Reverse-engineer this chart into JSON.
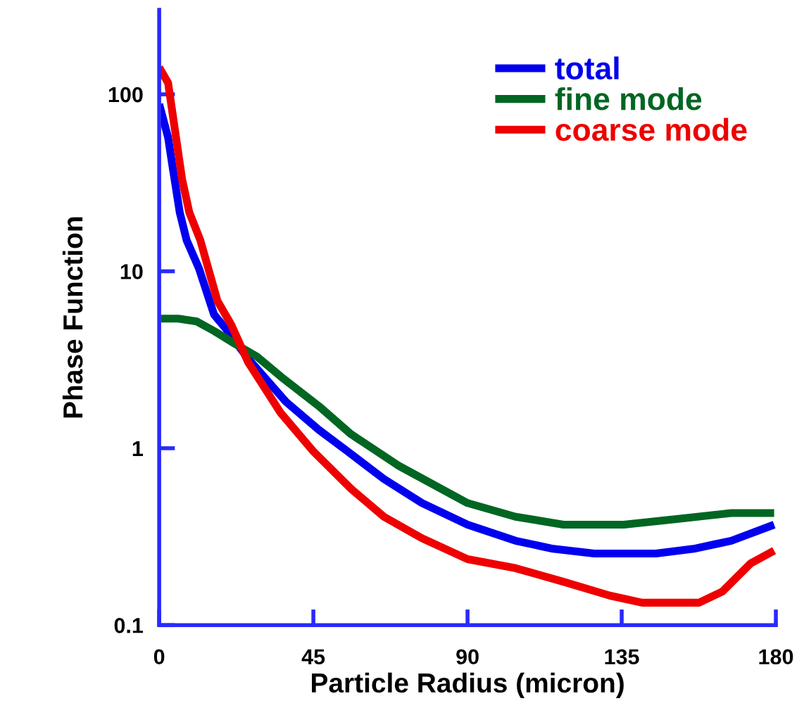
{
  "chart_data": {
    "type": "line",
    "xlabel": "Particle Radius (micron)",
    "ylabel": "Phase Function",
    "xlim": [
      0,
      180
    ],
    "xticks": [
      0,
      45,
      90,
      135,
      180
    ],
    "ylim": [
      0.1,
      300
    ],
    "yticks": [
      0.1,
      1,
      10,
      100
    ],
    "log": "y",
    "grid": false,
    "legend": "top right",
    "line_style": "solid",
    "series": [
      {
        "name": "total",
        "color": "#0000ee",
        "x": [
          0,
          2.6,
          3.9,
          6,
          8,
          11.6,
          16,
          20,
          24,
          26,
          37,
          46.6,
          55,
          65.6,
          76.7,
          90,
          104,
          115,
          127,
          145,
          156,
          167,
          179.5
        ],
        "values": [
          88,
          57,
          39,
          21.5,
          15,
          10.4,
          5.7,
          4.6,
          3.6,
          3.2,
          1.83,
          1.27,
          0.96,
          0.67,
          0.49,
          0.37,
          0.3,
          0.27,
          0.254,
          0.254,
          0.27,
          0.3,
          0.37
        ]
      },
      {
        "name": "fine mode",
        "color": "#006622",
        "x": [
          0.5,
          5.5,
          11,
          16,
          22,
          28.5,
          35.5,
          46.6,
          56,
          69.7,
          90,
          104,
          118,
          135.6,
          152,
          167,
          179.5
        ],
        "values": [
          5.4,
          5.4,
          5.2,
          4.6,
          3.9,
          3.3,
          2.54,
          1.73,
          1.2,
          0.8,
          0.49,
          0.41,
          0.37,
          0.37,
          0.4,
          0.43,
          0.43
        ]
      },
      {
        "name": "coarse mode",
        "color": "#ee0000",
        "x": [
          0,
          2.6,
          4.7,
          6.7,
          8.8,
          12,
          17,
          21,
          26,
          35.5,
          45,
          56,
          65.6,
          76.7,
          90,
          104,
          118,
          131.5,
          141,
          157.6,
          164.4,
          172.6,
          179.5
        ],
        "values": [
          142,
          116,
          61,
          33,
          21.5,
          15,
          6.8,
          5.0,
          3.05,
          1.58,
          0.96,
          0.59,
          0.41,
          0.31,
          0.236,
          0.21,
          0.176,
          0.147,
          0.134,
          0.134,
          0.155,
          0.223,
          0.264
        ]
      }
    ]
  }
}
